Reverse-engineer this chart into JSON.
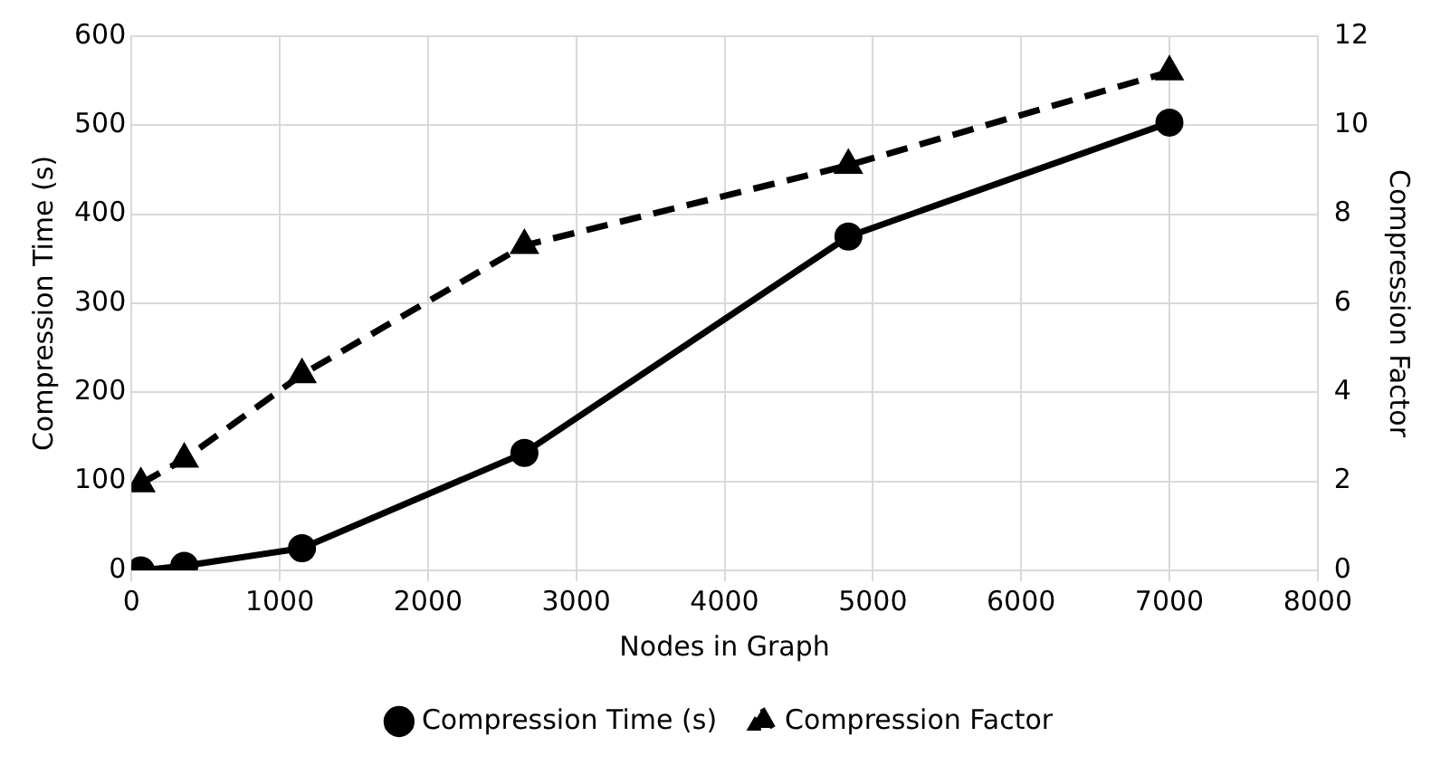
{
  "chart_data": {
    "type": "line",
    "xlabel": "Nodes in Graph",
    "ylabel": "Compression Time (s)",
    "y2label": "Compression Factor",
    "xlim": [
      0,
      8000
    ],
    "xticks": [
      0,
      1000,
      2000,
      3000,
      4000,
      5000,
      6000,
      7000,
      8000
    ],
    "ylim": [
      0,
      600
    ],
    "yticks": [
      0,
      100,
      200,
      300,
      400,
      500,
      600
    ],
    "y2lim": [
      0,
      12
    ],
    "y2ticks": [
      0,
      2,
      4,
      6,
      8,
      10,
      12
    ],
    "grid": true,
    "legend": "bottom",
    "series": [
      {
        "name": "Compression Time (s)",
        "color": "#000000",
        "marker": "circle",
        "line_style": "solid",
        "x": [
          63,
          356,
          1150,
          2650,
          4835,
          7000
        ],
        "values": [
          0,
          5,
          25,
          132,
          375,
          503
        ]
      },
      {
        "name": "Compression Factor",
        "color": "#000000",
        "marker": "triangle",
        "line_style": "dashed",
        "axis": "y2",
        "x": [
          63,
          356,
          1150,
          2650,
          4835,
          7000
        ],
        "values": [
          1.95,
          2.5,
          4.4,
          7.3,
          9.1,
          11.2
        ]
      }
    ]
  }
}
